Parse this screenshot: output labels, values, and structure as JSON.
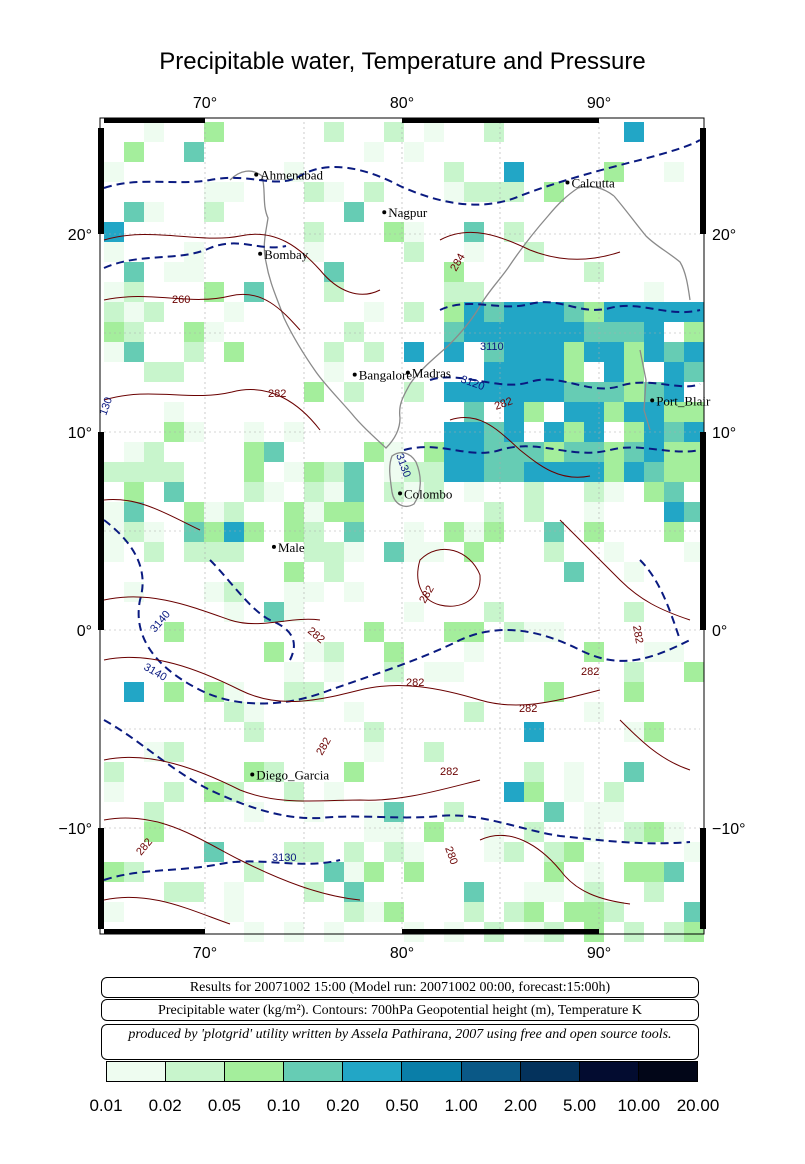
{
  "title": "Precipitable water, Temperature and Pressure",
  "axes": {
    "lon_ticks": [
      "70°",
      "80°",
      "90°"
    ],
    "lat_ticks": [
      "20°",
      "10°",
      "0°",
      "−10°"
    ]
  },
  "cities": [
    {
      "name": "Ahmenabad",
      "lon": 72.6,
      "lat": 23.0
    },
    {
      "name": "Nagpur",
      "lon": 79.1,
      "lat": 21.1
    },
    {
      "name": "Calcutta",
      "lon": 88.4,
      "lat": 22.6
    },
    {
      "name": "Bombay",
      "lon": 72.8,
      "lat": 19.0
    },
    {
      "name": "Bangalore",
      "lon": 77.6,
      "lat": 12.9
    },
    {
      "name": "Madras",
      "lon": 80.3,
      "lat": 13.0
    },
    {
      "name": "Port_Blair",
      "lon": 92.7,
      "lat": 11.6
    },
    {
      "name": "Colombo",
      "lon": 79.9,
      "lat": 6.9
    },
    {
      "name": "Male",
      "lon": 73.5,
      "lat": 4.2
    },
    {
      "name": "Diego_Garcia",
      "lon": 72.4,
      "lat": -7.3
    }
  ],
  "contour_labels": [
    "260",
    "284",
    "3110",
    "3120",
    "282",
    "282",
    "3130",
    "282",
    "3140",
    "3140",
    "282",
    "282",
    "282",
    "282",
    "282",
    "282",
    "282",
    "282",
    "3130",
    "280",
    "130"
  ],
  "info": {
    "results": "Results for 20071002 15:00 (Model run: 20071002 00:00, forecast:15:00h)",
    "legend_text": "Precipitable water (kg/m²).  Contours: 700hPa Geopotential height (m), Temperature K",
    "credit": "produced by 'plotgrid' utility written by Assela Pathirana, 2007 using free and open source tools."
  },
  "colorbar": {
    "colors": [
      "#eefcf0",
      "#c8f5cc",
      "#a4ee9c",
      "#66ccb4",
      "#22a6c6",
      "#0a7ea8",
      "#0a5886",
      "#04325c",
      "#030c30",
      "#020618"
    ],
    "labels": [
      "0.01",
      "0.02",
      "0.05",
      "0.10",
      "0.20",
      "0.50",
      "1.00",
      "2.00",
      "5.00",
      "10.00",
      "20.00"
    ]
  },
  "colors": {
    "coast": "#8a8a8a",
    "height_contour": "#0a1a80",
    "temp_contour": "#6a0000"
  }
}
